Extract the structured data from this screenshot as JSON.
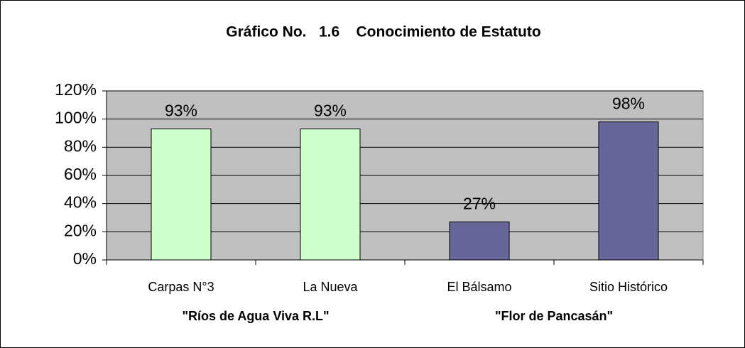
{
  "chart_data": {
    "type": "bar",
    "title": "Gráfico No.   1.6    Conocimiento de Estatuto",
    "categories": [
      "Carpas N°3",
      "La Nueva",
      "El Bálsamo",
      "Sitio Histórico"
    ],
    "groups": [
      "\"Ríos de Agua Viva R.L\"",
      "\"Flor de Pancasán\""
    ],
    "values": [
      93,
      93,
      27,
      98
    ],
    "value_labels": [
      "93%",
      "93%",
      "27%",
      "98%"
    ],
    "colors": [
      "#ccffcc",
      "#ccffcc",
      "#666699",
      "#666699"
    ],
    "ylim": [
      0,
      120
    ],
    "yticks": [
      {
        "value": 0,
        "label": "0%"
      },
      {
        "value": 20,
        "label": "20%"
      },
      {
        "value": 40,
        "label": "40%"
      },
      {
        "value": 60,
        "label": "60%"
      },
      {
        "value": 80,
        "label": "80%"
      },
      {
        "value": 100,
        "label": "100%"
      },
      {
        "value": 120,
        "label": "120%"
      }
    ],
    "grid": true
  }
}
